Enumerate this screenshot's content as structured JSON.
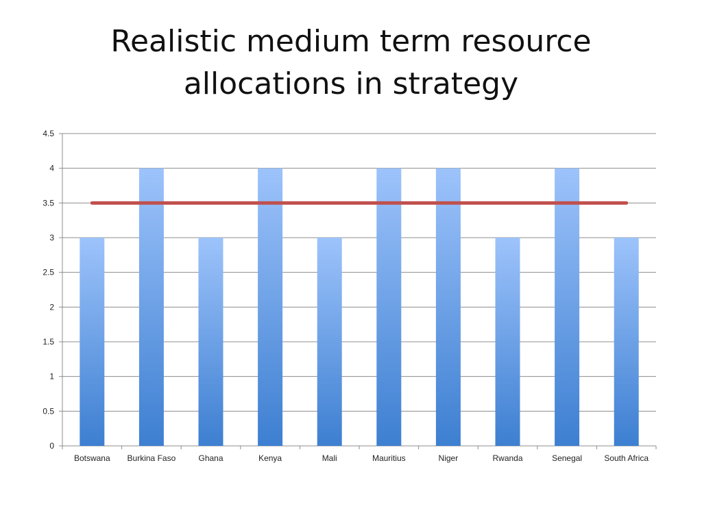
{
  "chart_data": {
    "type": "bar",
    "title": "Realistic medium term resource allocations in strategy",
    "categories": [
      "Botswana",
      "Burkina Faso",
      "Ghana",
      "Kenya",
      "Mali",
      "Mauritius",
      "Niger",
      "Rwanda",
      "Senegal",
      "South Africa"
    ],
    "series": [
      {
        "kind": "bar",
        "values": [
          3,
          4,
          3,
          4,
          3,
          4,
          4,
          3,
          4,
          3
        ],
        "color_top": "#9dc3fb",
        "color_bottom": "#3d7fd1"
      },
      {
        "kind": "line",
        "values": [
          3.5,
          3.5,
          3.5,
          3.5,
          3.5,
          3.5,
          3.5,
          3.5,
          3.5,
          3.5
        ],
        "color": "#c0504d"
      }
    ],
    "yticks": [
      "0",
      "0.5",
      "1",
      "1.5",
      "2",
      "2.5",
      "3",
      "3.5",
      "4",
      "4.5"
    ],
    "ylim": [
      0,
      4.5
    ],
    "grid": true,
    "legend": "none"
  }
}
